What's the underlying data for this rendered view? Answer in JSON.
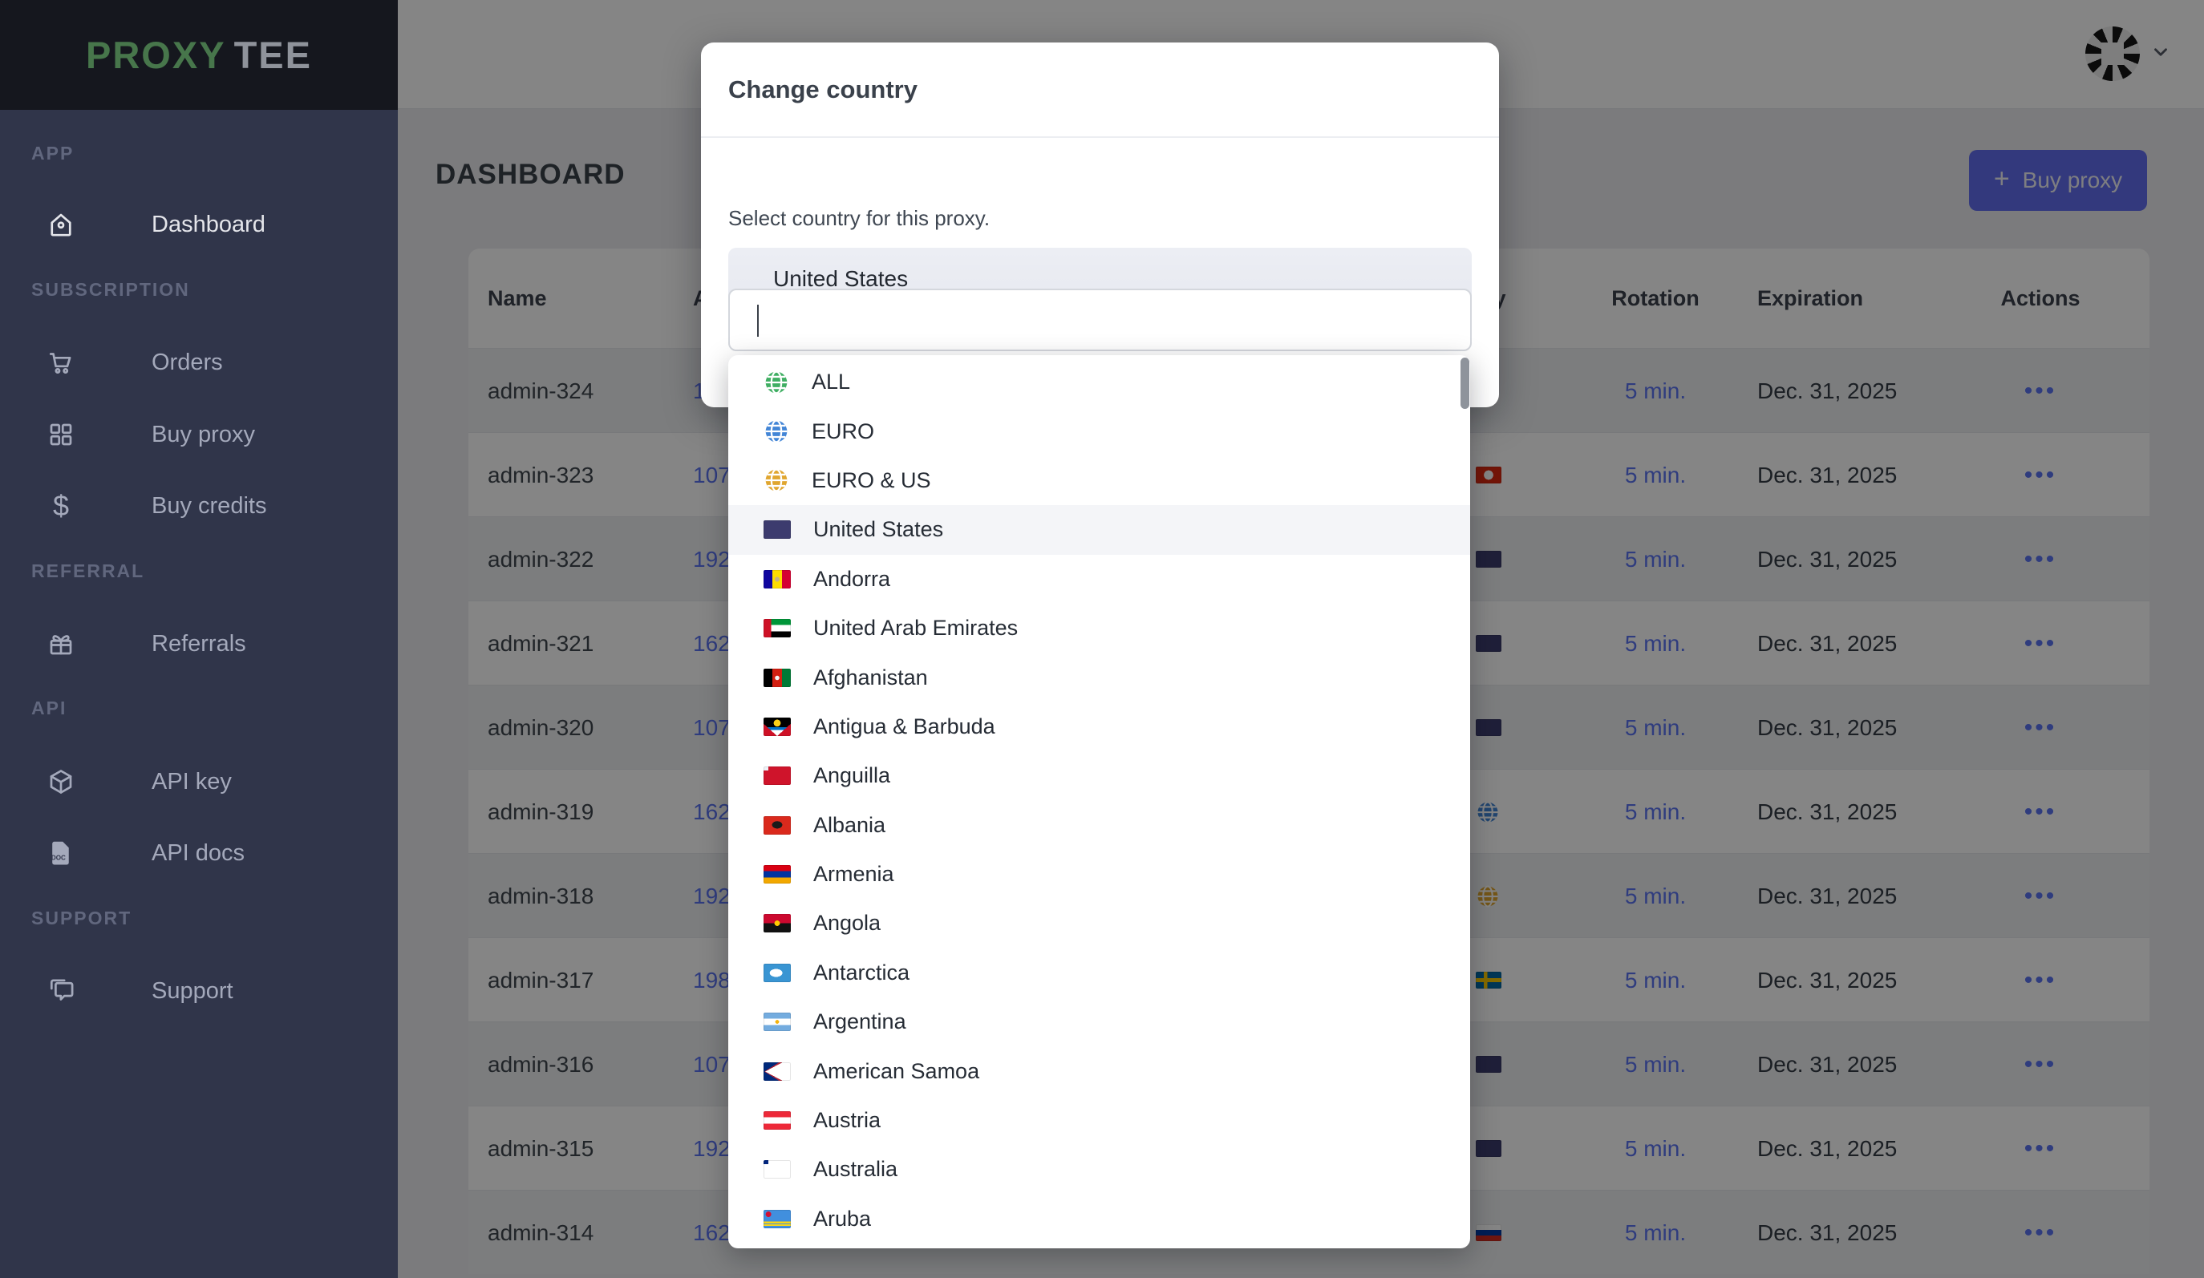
{
  "brand": {
    "name_primary": "PROXY",
    "name_secondary": "TEE"
  },
  "colors": {
    "brand_green": "#47764b",
    "sidebar_bg": "#30354a",
    "logo_bg": "#15171e",
    "accent_indigo": "#636ef0",
    "link_blue": "#5b74f2",
    "highlight_row": "#f4f5f8",
    "globe_green": "#3fae62",
    "globe_blue": "#4285d6",
    "globe_yellow": "#e0a62f"
  },
  "sidebar": {
    "sections": [
      {
        "label": "APP",
        "items": [
          {
            "label": "Dashboard",
            "icon": "home",
            "active": true
          }
        ]
      },
      {
        "label": "SUBSCRIPTION",
        "items": [
          {
            "label": "Orders",
            "icon": "cart",
            "active": false
          },
          {
            "label": "Buy proxy",
            "icon": "grid",
            "active": false
          },
          {
            "label": "Buy credits",
            "icon": "dollar",
            "active": false
          }
        ]
      },
      {
        "label": "REFERRAL",
        "items": [
          {
            "label": "Referrals",
            "icon": "gift",
            "active": false
          }
        ]
      },
      {
        "label": "API",
        "items": [
          {
            "label": "API key",
            "icon": "cube",
            "active": false
          },
          {
            "label": "API docs",
            "icon": "doc",
            "active": false
          }
        ]
      },
      {
        "label": "SUPPORT",
        "items": [
          {
            "label": "Support",
            "icon": "chat",
            "active": false
          }
        ]
      }
    ]
  },
  "page": {
    "title": "DASHBOARD",
    "buy_proxy_label": "Buy proxy",
    "buy_proxy_plus": "+"
  },
  "table": {
    "columns": {
      "name": "Name",
      "address": "Address",
      "country": "Country",
      "rotation": "Rotation",
      "expiration": "Expiration",
      "actions": "Actions"
    },
    "rows": [
      {
        "name": "admin-324",
        "address_visible": "1",
        "flag": null,
        "rotation": "5 min.",
        "expiration": "Dec. 31, 2025",
        "actions": "•••"
      },
      {
        "name": "admin-323",
        "address_visible": "107.",
        "flag": "hk",
        "rotation": "5 min.",
        "expiration": "Dec. 31, 2025",
        "actions": "•••"
      },
      {
        "name": "admin-322",
        "address_visible": "192.",
        "flag": "us",
        "rotation": "5 min.",
        "expiration": "Dec. 31, 2025",
        "actions": "•••"
      },
      {
        "name": "admin-321",
        "address_visible": "162.",
        "flag": "us",
        "rotation": "5 min.",
        "expiration": "Dec. 31, 2025",
        "actions": "•••"
      },
      {
        "name": "admin-320",
        "address_visible": "107.",
        "flag": "us",
        "rotation": "5 min.",
        "expiration": "Dec. 31, 2025",
        "actions": "•••"
      },
      {
        "name": "admin-319",
        "address_visible": "162.",
        "flag": "globe-blue",
        "rotation": "5 min.",
        "expiration": "Dec. 31, 2025",
        "actions": "•••"
      },
      {
        "name": "admin-318",
        "address_visible": "192.",
        "flag": "globe-yellow",
        "rotation": "5 min.",
        "expiration": "Dec. 31, 2025",
        "actions": "•••"
      },
      {
        "name": "admin-317",
        "address_visible": "198.",
        "flag": "se",
        "rotation": "5 min.",
        "expiration": "Dec. 31, 2025",
        "actions": "•••"
      },
      {
        "name": "admin-316",
        "address_visible": "107.",
        "flag": "us",
        "rotation": "5 min.",
        "expiration": "Dec. 31, 2025",
        "actions": "•••"
      },
      {
        "name": "admin-315",
        "address_visible": "192.",
        "flag": "us",
        "rotation": "5 min.",
        "expiration": "Dec. 31, 2025",
        "actions": "•••"
      },
      {
        "name": "admin-314",
        "address_visible": "162.",
        "flag": "ru",
        "rotation": "5 min.",
        "expiration": "Dec. 31, 2025",
        "actions": "•••"
      }
    ]
  },
  "modal": {
    "title": "Change country",
    "description": "Select country for this proxy.",
    "selected_country": {
      "label": "United States",
      "flag": "us"
    },
    "search": {
      "value": "",
      "placeholder": ""
    },
    "options": [
      {
        "label": "ALL",
        "icon": "globe-green"
      },
      {
        "label": "EURO",
        "icon": "globe-blue"
      },
      {
        "label": "EURO & US",
        "icon": "globe-yellow"
      },
      {
        "label": "United States",
        "flag": "us",
        "highlighted": true
      },
      {
        "label": "Andorra",
        "flag": "ad"
      },
      {
        "label": "United Arab Emirates",
        "flag": "ae"
      },
      {
        "label": "Afghanistan",
        "flag": "af"
      },
      {
        "label": "Antigua & Barbuda",
        "flag": "ag"
      },
      {
        "label": "Anguilla",
        "flag": "ai"
      },
      {
        "label": "Albania",
        "flag": "al"
      },
      {
        "label": "Armenia",
        "flag": "am"
      },
      {
        "label": "Angola",
        "flag": "ao"
      },
      {
        "label": "Antarctica",
        "flag": "aq"
      },
      {
        "label": "Argentina",
        "flag": "ar"
      },
      {
        "label": "American Samoa",
        "flag": "as"
      },
      {
        "label": "Austria",
        "flag": "at"
      },
      {
        "label": "Australia",
        "flag": "au"
      },
      {
        "label": "Aruba",
        "flag": "aw"
      }
    ]
  }
}
